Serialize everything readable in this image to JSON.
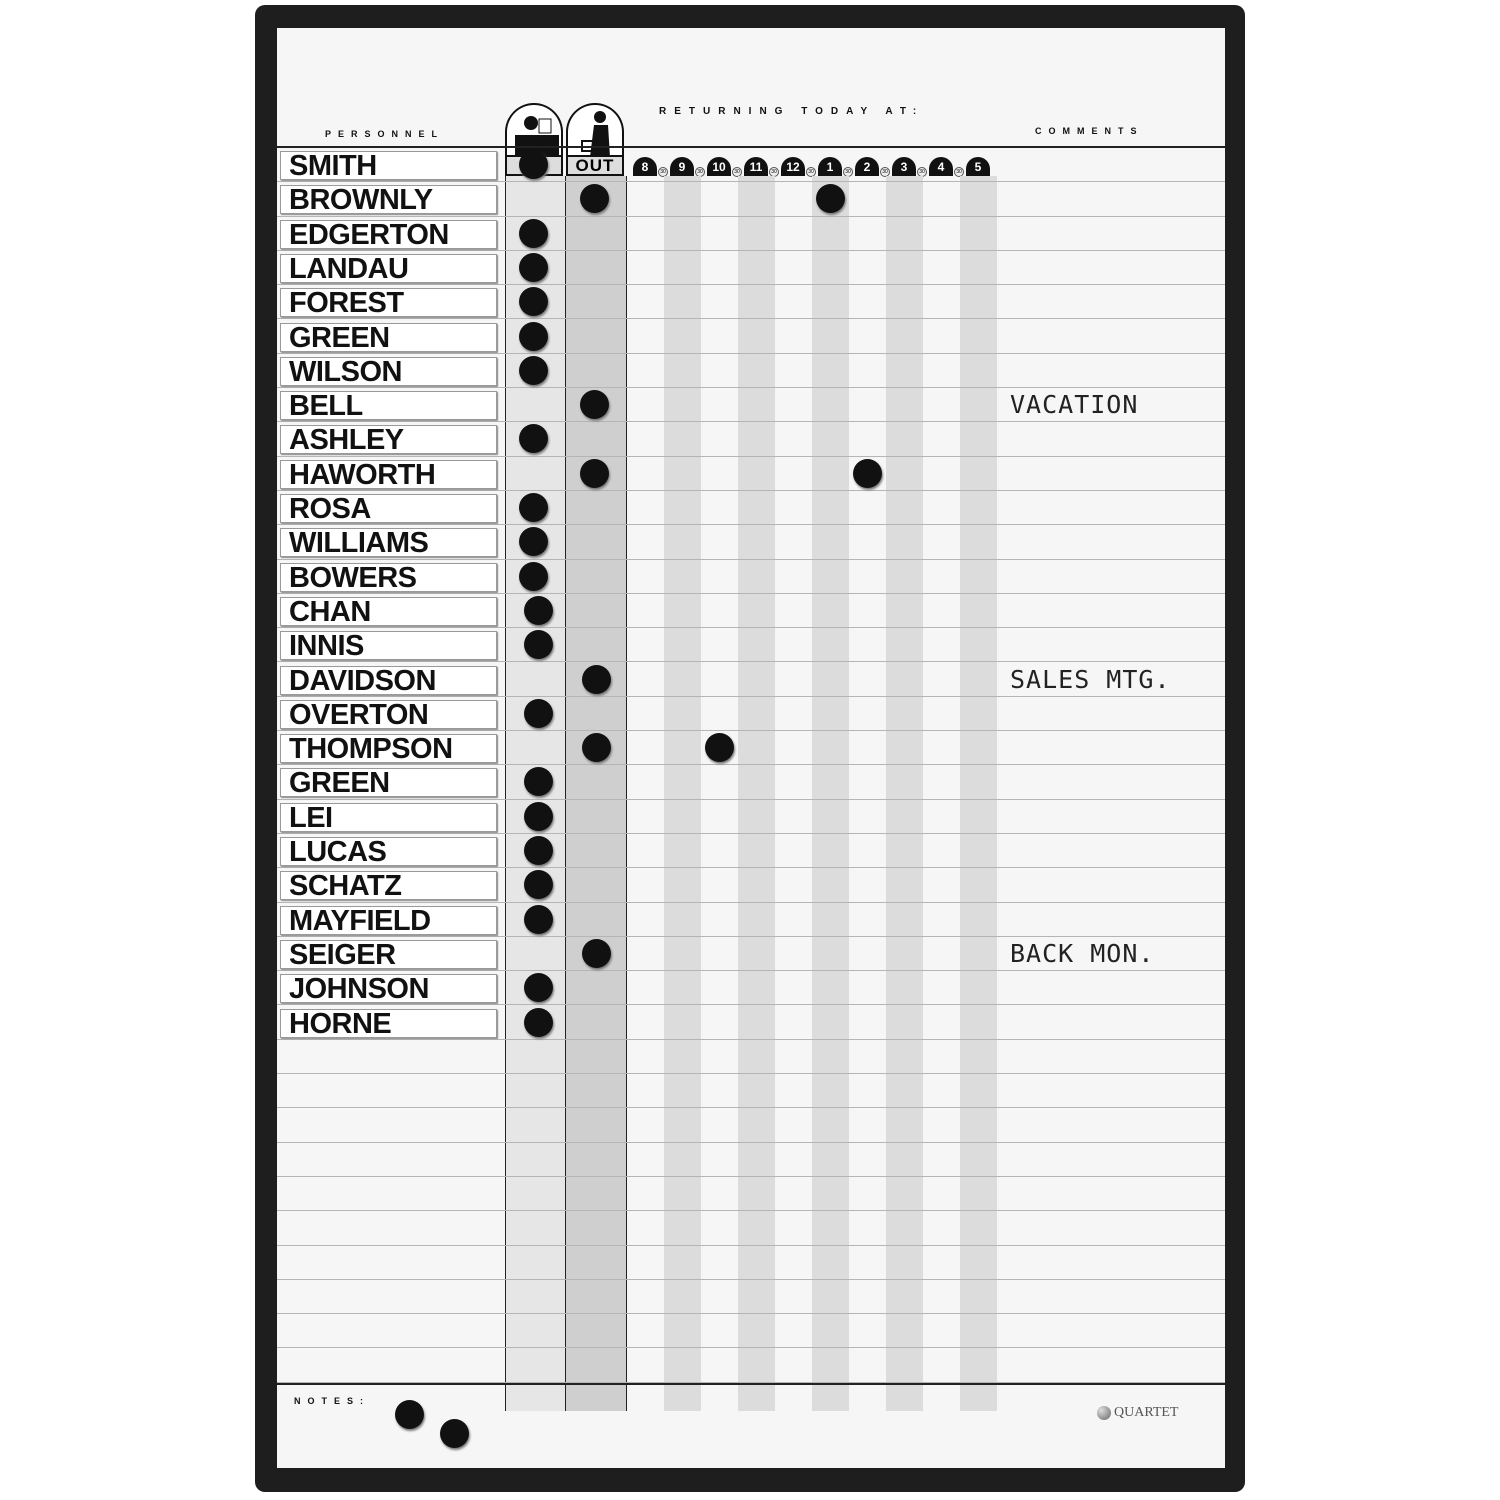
{
  "headers": {
    "personnel": "PERSONNEL",
    "in": "IN",
    "out": "OUT",
    "returning": "RETURNING TODAY AT:",
    "comments": "COMMENTS",
    "notes": "NOTES:"
  },
  "hours": [
    "8",
    "9",
    "10",
    "11",
    "12",
    "1",
    "2",
    "3",
    "4",
    "5"
  ],
  "half_label": "30",
  "brand": "QUARTET",
  "people": [
    {
      "name": "SMITH",
      "status": "in",
      "returning": null,
      "comment": ""
    },
    {
      "name": "BROWNLY",
      "status": "out",
      "returning": "1",
      "comment": ""
    },
    {
      "name": "EDGERTON",
      "status": "in",
      "returning": null,
      "comment": ""
    },
    {
      "name": "LANDAU",
      "status": "in",
      "returning": null,
      "comment": ""
    },
    {
      "name": "FOREST",
      "status": "in",
      "returning": null,
      "comment": ""
    },
    {
      "name": "GREEN",
      "status": "in",
      "returning": null,
      "comment": ""
    },
    {
      "name": "WILSON",
      "status": "in",
      "returning": null,
      "comment": ""
    },
    {
      "name": "BELL",
      "status": "out",
      "returning": null,
      "comment": "VACATION"
    },
    {
      "name": "ASHLEY",
      "status": "in",
      "returning": null,
      "comment": ""
    },
    {
      "name": "HAWORTH",
      "status": "out",
      "returning": "2",
      "comment": ""
    },
    {
      "name": "ROSA",
      "status": "in",
      "returning": null,
      "comment": ""
    },
    {
      "name": "WILLIAMS",
      "status": "in",
      "returning": null,
      "comment": ""
    },
    {
      "name": "BOWERS",
      "status": "in",
      "returning": null,
      "comment": ""
    },
    {
      "name": "CHAN",
      "status": "in",
      "returning": null,
      "comment": ""
    },
    {
      "name": "INNIS",
      "status": "in",
      "returning": null,
      "comment": ""
    },
    {
      "name": "DAVIDSON",
      "status": "out",
      "returning": null,
      "comment": "SALES MTG."
    },
    {
      "name": "OVERTON",
      "status": "in",
      "returning": null,
      "comment": ""
    },
    {
      "name": "THOMPSON",
      "status": "out",
      "returning": "10",
      "comment": ""
    },
    {
      "name": "GREEN",
      "status": "in",
      "returning": null,
      "comment": ""
    },
    {
      "name": "LEI",
      "status": "in",
      "returning": null,
      "comment": ""
    },
    {
      "name": "LUCAS",
      "status": "in",
      "returning": null,
      "comment": ""
    },
    {
      "name": "SCHATZ",
      "status": "in",
      "returning": null,
      "comment": ""
    },
    {
      "name": "MAYFIELD",
      "status": "in",
      "returning": null,
      "comment": ""
    },
    {
      "name": "SEIGER",
      "status": "out",
      "returning": null,
      "comment": "BACK MON."
    },
    {
      "name": "JOHNSON",
      "status": "in",
      "returning": null,
      "comment": ""
    },
    {
      "name": "HORNE",
      "status": "in",
      "returning": null,
      "comment": ""
    }
  ],
  "total_rows": 36,
  "notes_magnets": 2
}
